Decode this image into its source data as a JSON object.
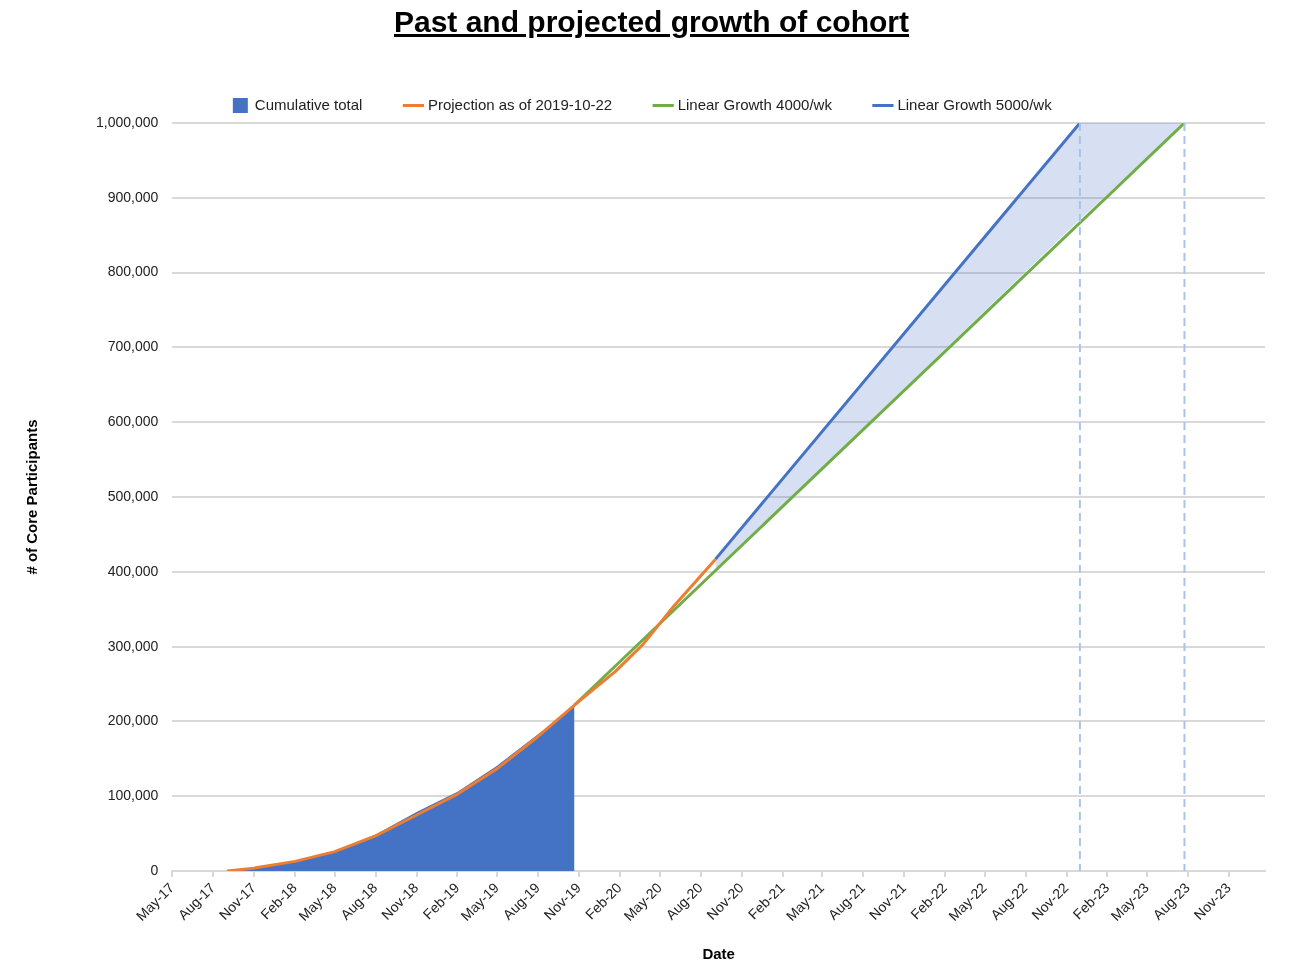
{
  "chart_data": {
    "type": "line",
    "title": "Past and projected growth of cohort",
    "xlabel": "Date",
    "ylabel": "# of Core Participants",
    "xlim": [
      "2017-05-01",
      "2024-01-21"
    ],
    "xticks": [
      {
        "value": "2017-05-01",
        "label": "May-17"
      },
      {
        "value": "2017-08-01",
        "label": "Aug-17"
      },
      {
        "value": "2017-11-01",
        "label": "Nov-17"
      },
      {
        "value": "2018-02-01",
        "label": "Feb-18"
      },
      {
        "value": "2018-05-01",
        "label": "May-18"
      },
      {
        "value": "2018-08-01",
        "label": "Aug-18"
      },
      {
        "value": "2018-11-01",
        "label": "Nov-18"
      },
      {
        "value": "2019-02-01",
        "label": "Feb-19"
      },
      {
        "value": "2019-05-01",
        "label": "May-19"
      },
      {
        "value": "2019-08-01",
        "label": "Aug-19"
      },
      {
        "value": "2019-11-01",
        "label": "Nov-19"
      },
      {
        "value": "2020-02-01",
        "label": "Feb-20"
      },
      {
        "value": "2020-05-01",
        "label": "May-20"
      },
      {
        "value": "2020-08-01",
        "label": "Aug-20"
      },
      {
        "value": "2020-11-01",
        "label": "Nov-20"
      },
      {
        "value": "2021-02-01",
        "label": "Feb-21"
      },
      {
        "value": "2021-05-01",
        "label": "May-21"
      },
      {
        "value": "2021-08-01",
        "label": "Aug-21"
      },
      {
        "value": "2021-11-01",
        "label": "Nov-21"
      },
      {
        "value": "2022-02-01",
        "label": "Feb-22"
      },
      {
        "value": "2022-05-01",
        "label": "May-22"
      },
      {
        "value": "2022-08-01",
        "label": "Aug-22"
      },
      {
        "value": "2022-11-01",
        "label": "Nov-22"
      },
      {
        "value": "2023-02-01",
        "label": "Feb-23"
      },
      {
        "value": "2023-05-01",
        "label": "May-23"
      },
      {
        "value": "2023-08-01",
        "label": "Aug-23"
      },
      {
        "value": "2023-11-01",
        "label": "Nov-23"
      }
    ],
    "ylim": [
      0,
      1000000
    ],
    "yticks": [
      0,
      {
        "value": 100000,
        "label": "100,000"
      },
      {
        "value": 200000,
        "label": "200,000"
      },
      {
        "value": 300000,
        "label": "300,000"
      },
      {
        "value": 400000,
        "label": "400,000"
      },
      {
        "value": 500000,
        "label": "500,000"
      },
      {
        "value": 600000,
        "label": "600,000"
      },
      {
        "value": 700000,
        "label": "700,000"
      },
      {
        "value": 800000,
        "label": "800,000"
      },
      {
        "value": 900000,
        "label": "900,000"
      },
      {
        "value": 1000000,
        "label": "1,000,000"
      }
    ],
    "grid": "y",
    "legend": "top",
    "marker": "none",
    "line_style": "solid",
    "series": [
      {
        "type": "area",
        "name": "Cumulative total",
        "color": "#4472c4",
        "x": [
          "2017-09-01",
          "2017-11-01",
          "2018-02-01",
          "2018-05-01",
          "2018-08-01",
          "2018-11-01",
          "2019-02-01",
          "2019-05-01",
          "2019-08-01",
          "2019-10-22"
        ],
        "values": [
          0,
          4000,
          13000,
          27000,
          49000,
          79000,
          106000,
          141000,
          183000,
          220000
        ]
      },
      {
        "name": "Projection as of 2019-10-22",
        "color": "#ed7d31",
        "x": [
          "2017-09-01",
          "2017-11-01",
          "2018-02-01",
          "2018-05-01",
          "2018-08-01",
          "2018-11-01",
          "2019-02-01",
          "2019-05-01",
          "2019-08-01",
          "2019-11-01",
          "2020-01-22",
          "2020-03-24",
          "2020-06-01",
          "2020-09-03"
        ],
        "values": [
          0,
          4000,
          13000,
          26000,
          47000,
          75000,
          103000,
          137000,
          180000,
          227000,
          267000,
          303000,
          354000,
          417000
        ]
      },
      {
        "name": "Linear Growth 4000/wk",
        "color": "#70ad47",
        "x": [
          "2019-10-22",
          "2023-07-24"
        ],
        "values": [
          222000,
          1000000
        ]
      },
      {
        "name": "Linear Growth 5000/wk",
        "color": "#4472c4",
        "x": [
          "2020-09-03",
          "2022-12-01",
          "2023-07-24"
        ],
        "values": [
          417000,
          1000000,
          null
        ],
        "lower": [
          403000,
          871000,
          1000000
        ],
        "upper": [
          417000,
          1000000,
          1000000
        ]
      }
    ],
    "ref_lines": [
      {
        "axis": "x",
        "value": "2022-12-01",
        "color": "#a9c4eb",
        "line_style": "dashed"
      },
      {
        "axis": "x",
        "value": "2023-07-24",
        "color": "#a9c4eb",
        "line_style": "dashed"
      }
    ]
  }
}
